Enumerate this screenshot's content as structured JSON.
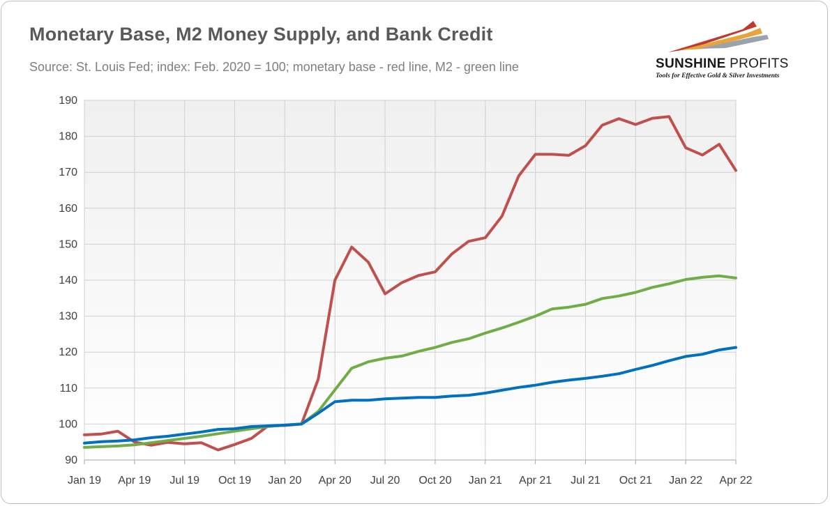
{
  "header": {
    "title": "Monetary Base, M2 Money Supply, and Bank Credit",
    "subtitle": "Source: St. Louis Fed; index: Feb. 2020 = 100; monetary base - red line, M2 - green line"
  },
  "logo": {
    "name_bold": "SUNSHINE",
    "name_light": " PROFITS",
    "tagline": "Tools for Effective Gold & Silver Investments",
    "colors": [
      "#c0392b",
      "#e8a33d",
      "#9aa3ad"
    ]
  },
  "chart_data": {
    "type": "line",
    "title": "Monetary Base, M2 Money Supply, and Bank Credit",
    "xlabel": "",
    "ylabel": "",
    "ylim": [
      90,
      190
    ],
    "yticks": [
      90,
      100,
      110,
      120,
      130,
      140,
      150,
      160,
      170,
      180,
      190
    ],
    "x_tick_labels": [
      "Jan 19",
      "Apr 19",
      "Jul 19",
      "Oct 19",
      "Jan 20",
      "Apr 20",
      "Jul 20",
      "Oct 20",
      "Jan 21",
      "Apr 21",
      "Jul 21",
      "Oct 21",
      "Jan 22",
      "Apr 22"
    ],
    "x": [
      "Jan 19",
      "Feb 19",
      "Mar 19",
      "Apr 19",
      "May 19",
      "Jun 19",
      "Jul 19",
      "Aug 19",
      "Sep 19",
      "Oct 19",
      "Nov 19",
      "Dec 19",
      "Jan 20",
      "Feb 20",
      "Mar 20",
      "Apr 20",
      "May 20",
      "Jun 20",
      "Jul 20",
      "Aug 20",
      "Sep 20",
      "Oct 20",
      "Nov 20",
      "Dec 20",
      "Jan 21",
      "Feb 21",
      "Mar 21",
      "Apr 21",
      "May 21",
      "Jun 21",
      "Jul 21",
      "Aug 21",
      "Sep 21",
      "Oct 21",
      "Nov 21",
      "Dec 21",
      "Jan 22",
      "Feb 22",
      "Mar 22",
      "Apr 22"
    ],
    "grid": true,
    "legend": "none",
    "series": [
      {
        "color": "#c0504d",
        "values": [
          97.0,
          97.2,
          98.0,
          95.0,
          94.1,
          94.9,
          94.5,
          94.8,
          92.8,
          94.3,
          96.0,
          99.5,
          99.6,
          100.0,
          112.5,
          140.0,
          149.2,
          145.0,
          136.2,
          139.3,
          141.3,
          142.3,
          147.3,
          150.8,
          151.8,
          157.8,
          169.0,
          175.0,
          175.0,
          174.7,
          177.4,
          183.1,
          184.9,
          183.3,
          185.0,
          185.5,
          176.8,
          174.8,
          177.8,
          170.5
        ]
      },
      {
        "color": "#70ad47",
        "values": [
          93.5,
          93.7,
          93.9,
          94.2,
          94.8,
          95.4,
          96.0,
          96.6,
          97.3,
          98.0,
          98.7,
          99.3,
          99.7,
          100.0,
          103.5,
          109.5,
          115.5,
          117.3,
          118.3,
          118.9,
          120.2,
          121.3,
          122.7,
          123.7,
          125.3,
          126.7,
          128.3,
          130.0,
          132.0,
          132.5,
          133.3,
          134.9,
          135.6,
          136.6,
          138.0,
          139.0,
          140.2,
          140.8,
          141.2,
          140.6
        ]
      },
      {
        "color": "#0070c0",
        "values": [
          94.7,
          95.1,
          95.3,
          95.6,
          96.2,
          96.6,
          97.2,
          97.8,
          98.5,
          98.7,
          99.3,
          99.5,
          99.7,
          100.0,
          103.0,
          106.2,
          106.6,
          106.6,
          107.0,
          107.2,
          107.4,
          107.4,
          107.8,
          108.0,
          108.6,
          109.4,
          110.2,
          110.8,
          111.6,
          112.2,
          112.7,
          113.3,
          114.0,
          115.2,
          116.3,
          117.6,
          118.8,
          119.4,
          120.6,
          121.3
        ]
      }
    ]
  }
}
